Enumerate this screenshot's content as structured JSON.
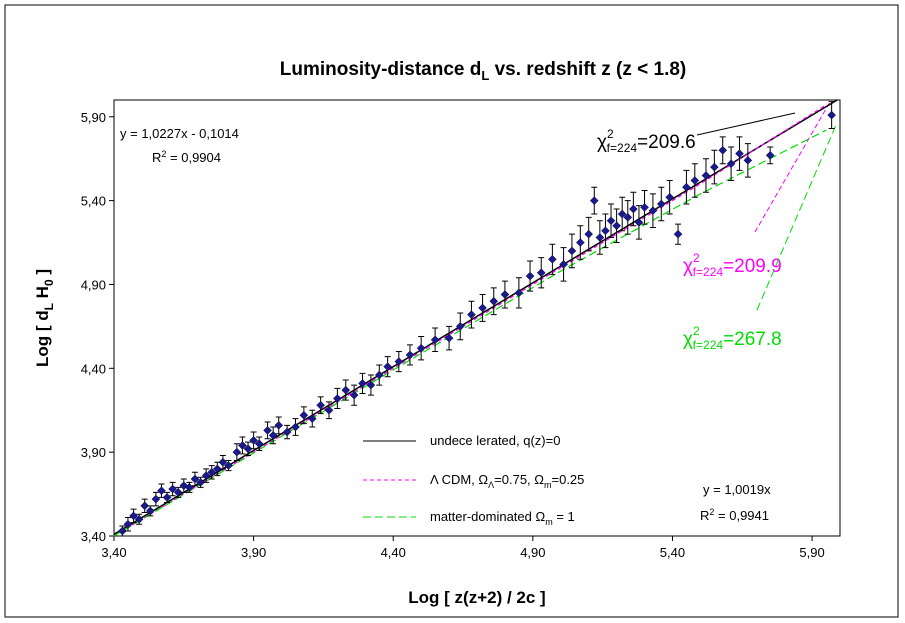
{
  "chart_data": {
    "type": "scatter",
    "title": [
      "Luminosity-distance d",
      "L",
      " vs. redshift z (z < 1.8)"
    ],
    "x_label": "Log [ z(z+2) / 2c ]",
    "y_label": [
      "Log [ d",
      "L",
      " H",
      "0",
      " ]"
    ],
    "xlim": [
      3.4,
      6.0
    ],
    "ylim": [
      3.4,
      6.0
    ],
    "xticks": [
      {
        "value": 3.4,
        "label": "3,40"
      },
      {
        "value": 3.9,
        "label": "3,90"
      },
      {
        "value": 4.4,
        "label": "4,40"
      },
      {
        "value": 4.9,
        "label": "4,90"
      },
      {
        "value": 5.4,
        "label": "5,40"
      },
      {
        "value": 5.9,
        "label": "5,90"
      }
    ],
    "yticks": [
      {
        "value": 3.4,
        "label": "3,40"
      },
      {
        "value": 3.9,
        "label": "3,90"
      },
      {
        "value": 4.4,
        "label": "4,40"
      },
      {
        "value": 4.9,
        "label": "4,90"
      },
      {
        "value": 5.4,
        "label": "5,40"
      },
      {
        "value": 5.9,
        "label": "5,90"
      }
    ],
    "grid": false,
    "points": {
      "color": "#1a1a8c",
      "x": [
        3.43,
        3.45,
        3.47,
        3.49,
        3.51,
        3.53,
        3.55,
        3.57,
        3.59,
        3.61,
        3.63,
        3.65,
        3.67,
        3.69,
        3.71,
        3.73,
        3.75,
        3.77,
        3.79,
        3.81,
        3.84,
        3.86,
        3.88,
        3.9,
        3.92,
        3.95,
        3.97,
        3.99,
        4.02,
        4.05,
        4.08,
        4.11,
        4.14,
        4.17,
        4.2,
        4.23,
        4.26,
        4.29,
        4.32,
        4.35,
        4.38,
        4.42,
        4.46,
        4.5,
        4.55,
        4.6,
        4.64,
        4.68,
        4.72,
        4.76,
        4.8,
        4.85,
        4.89,
        4.93,
        4.97,
        5.01,
        5.04,
        5.07,
        5.1,
        5.12,
        5.14,
        5.16,
        5.18,
        5.2,
        5.22,
        5.24,
        5.26,
        5.28,
        5.3,
        5.33,
        5.36,
        5.39,
        5.42,
        5.45,
        5.48,
        5.52,
        5.55,
        5.58,
        5.61,
        5.64,
        5.67,
        5.75,
        5.97
      ],
      "values": [
        3.43,
        3.47,
        3.52,
        3.5,
        3.58,
        3.55,
        3.62,
        3.67,
        3.63,
        3.68,
        3.66,
        3.7,
        3.69,
        3.74,
        3.72,
        3.76,
        3.78,
        3.8,
        3.84,
        3.82,
        3.9,
        3.94,
        3.92,
        3.97,
        3.95,
        4.03,
        4.0,
        4.06,
        4.02,
        4.05,
        4.12,
        4.1,
        4.18,
        4.15,
        4.22,
        4.27,
        4.24,
        4.31,
        4.3,
        4.36,
        4.41,
        4.44,
        4.48,
        4.52,
        4.57,
        4.58,
        4.65,
        4.72,
        4.76,
        4.8,
        4.84,
        4.85,
        4.95,
        4.97,
        5.05,
        5.02,
        5.1,
        5.15,
        5.2,
        5.4,
        5.18,
        5.22,
        5.28,
        5.25,
        5.32,
        5.3,
        5.35,
        5.27,
        5.36,
        5.34,
        5.38,
        5.42,
        5.2,
        5.48,
        5.52,
        5.55,
        5.6,
        5.7,
        5.62,
        5.68,
        5.64,
        5.67,
        5.91
      ],
      "errors": [
        0.03,
        0.04,
        0.04,
        0.03,
        0.04,
        0.03,
        0.04,
        0.04,
        0.03,
        0.04,
        0.03,
        0.04,
        0.03,
        0.04,
        0.03,
        0.04,
        0.04,
        0.04,
        0.04,
        0.03,
        0.05,
        0.05,
        0.04,
        0.05,
        0.04,
        0.05,
        0.05,
        0.05,
        0.04,
        0.05,
        0.05,
        0.05,
        0.05,
        0.05,
        0.06,
        0.06,
        0.06,
        0.06,
        0.06,
        0.06,
        0.06,
        0.06,
        0.06,
        0.07,
        0.07,
        0.07,
        0.08,
        0.08,
        0.08,
        0.08,
        0.08,
        0.09,
        0.09,
        0.09,
        0.09,
        0.1,
        0.1,
        0.1,
        0.1,
        0.08,
        0.1,
        0.1,
        0.1,
        0.1,
        0.1,
        0.1,
        0.1,
        0.1,
        0.1,
        0.1,
        0.1,
        0.1,
        0.06,
        0.1,
        0.1,
        0.1,
        0.1,
        0.08,
        0.1,
        0.1,
        0.1,
        0.05,
        0.08
      ]
    },
    "series": [
      {
        "name": "undece lerated, q(z)=0",
        "color": "#000000",
        "dash": false,
        "x": [
          3.4,
          5.99
        ],
        "values": [
          3.41,
          6.0
        ]
      },
      {
        "name": [
          "Λ CDM, Ω",
          "Λ",
          "=0.75, Ω",
          "m",
          "=0.25"
        ],
        "color": "#ff00ff",
        "dash": true,
        "x": [
          3.4,
          4.4,
          5.0,
          5.5,
          5.95
        ],
        "values": [
          3.4,
          4.4,
          5.0,
          5.5,
          5.97
        ]
      },
      {
        "name": [
          "matter-dominated Ω",
          "m",
          " = 1"
        ],
        "color": "#00dd00",
        "dash": true,
        "x": [
          3.4,
          4.4,
          5.0,
          5.5,
          5.95
        ],
        "values": [
          3.4,
          4.39,
          4.98,
          5.44,
          5.82
        ]
      }
    ],
    "annotations": {
      "fit1": "y = 1,0227x - 0,1014",
      "r2_1": [
        "R",
        "2",
        " = 0,9904"
      ],
      "fit2": "y = 1,0019x",
      "r2_2": [
        "R",
        "2",
        " = 0,9941"
      ],
      "chi_black": [
        "χ",
        "2",
        "f=224",
        "=209.6"
      ],
      "chi_magenta": [
        "χ",
        "2",
        "f=224",
        "=209.9"
      ],
      "chi_green": [
        "χ",
        "2",
        "f=224",
        "=267.8"
      ]
    }
  }
}
